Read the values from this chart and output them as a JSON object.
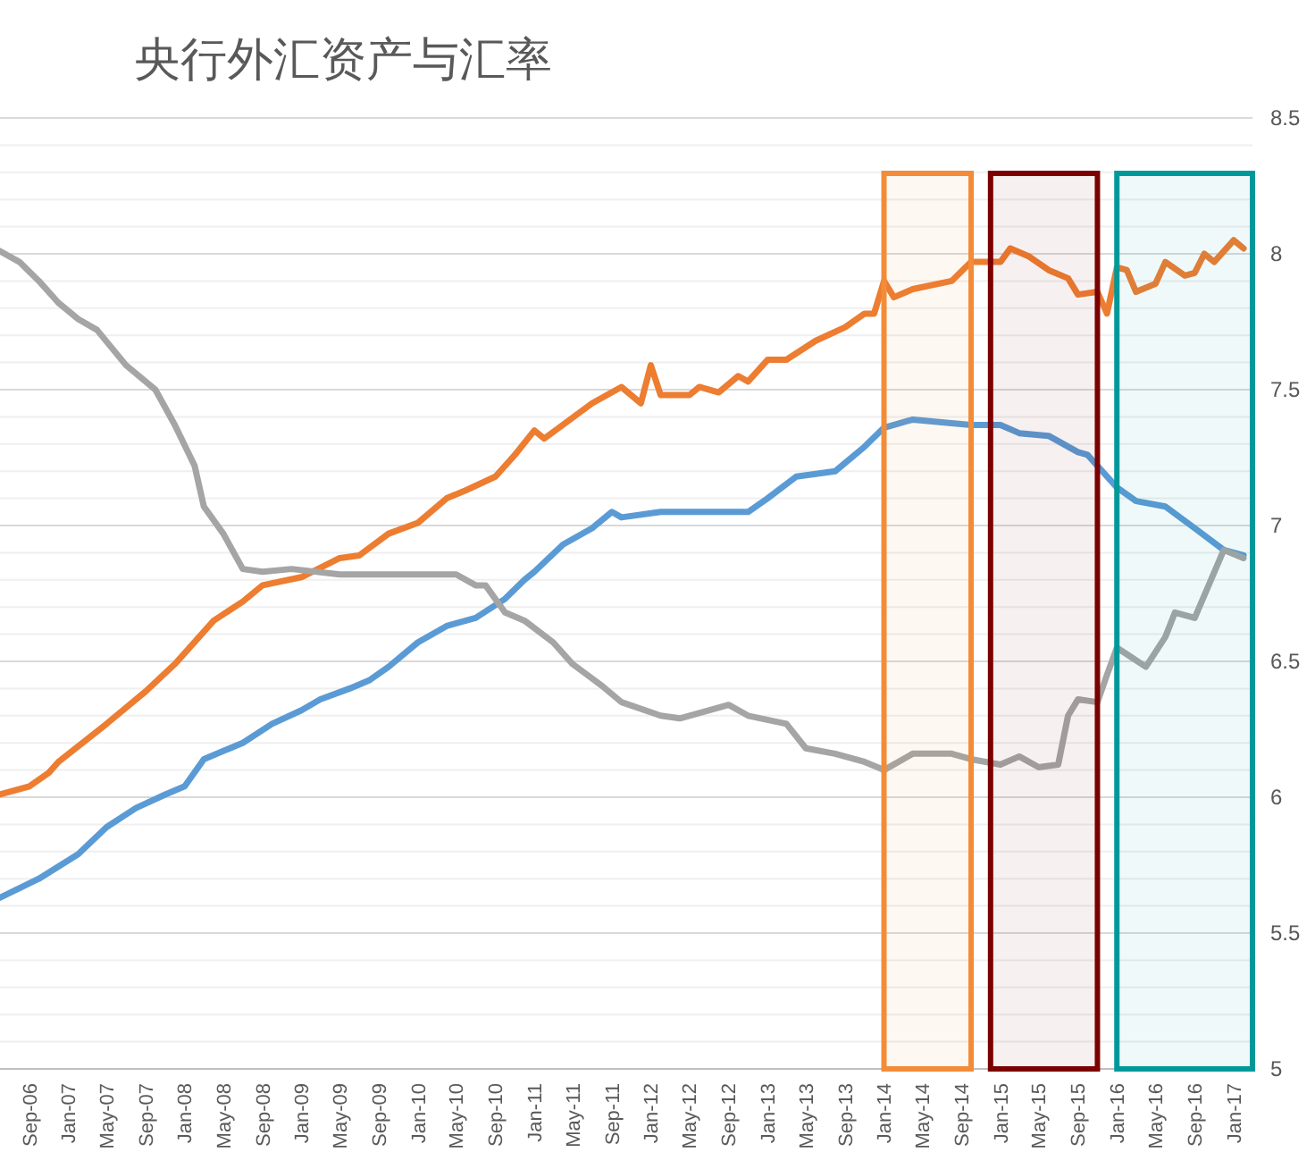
{
  "chart_data": {
    "type": "line",
    "title": "央行外汇资产与汇率",
    "xlim": [
      "2006-06",
      "2017-03"
    ],
    "xticks": [
      {
        "value": "2006-09",
        "label": "Sep-06"
      },
      {
        "value": "2007-01",
        "label": "Jan-07"
      },
      {
        "value": "2007-05",
        "label": "May-07"
      },
      {
        "value": "2007-09",
        "label": "Sep-07"
      },
      {
        "value": "2008-01",
        "label": "Jan-08"
      },
      {
        "value": "2008-05",
        "label": "May-08"
      },
      {
        "value": "2008-09",
        "label": "Sep-08"
      },
      {
        "value": "2009-01",
        "label": "Jan-09"
      },
      {
        "value": "2009-05",
        "label": "May-09"
      },
      {
        "value": "2009-09",
        "label": "Sep-09"
      },
      {
        "value": "2010-01",
        "label": "Jan-10"
      },
      {
        "value": "2010-05",
        "label": "May-10"
      },
      {
        "value": "2010-09",
        "label": "Sep-10"
      },
      {
        "value": "2011-01",
        "label": "Jan-11"
      },
      {
        "value": "2011-05",
        "label": "May-11"
      },
      {
        "value": "2011-09",
        "label": "Sep-11"
      },
      {
        "value": "2012-01",
        "label": "Jan-12"
      },
      {
        "value": "2012-05",
        "label": "May-12"
      },
      {
        "value": "2012-09",
        "label": "Sep-12"
      },
      {
        "value": "2013-01",
        "label": "Jan-13"
      },
      {
        "value": "2013-05",
        "label": "May-13"
      },
      {
        "value": "2013-09",
        "label": "Sep-13"
      },
      {
        "value": "2014-01",
        "label": "Jan-14"
      },
      {
        "value": "2014-05",
        "label": "May-14"
      },
      {
        "value": "2014-09",
        "label": "Sep-14"
      },
      {
        "value": "2015-01",
        "label": "Jan-15"
      },
      {
        "value": "2015-05",
        "label": "May-15"
      },
      {
        "value": "2015-09",
        "label": "Sep-15"
      },
      {
        "value": "2016-01",
        "label": "Jan-16"
      },
      {
        "value": "2016-05",
        "label": "May-16"
      },
      {
        "value": "2016-09",
        "label": "Sep-16"
      },
      {
        "value": "2017-01",
        "label": "Jan-17"
      }
    ],
    "ylim": [
      5,
      8.5
    ],
    "yticks": [
      5,
      {
        "value": 5.1,
        "label": null
      },
      {
        "value": 5.2,
        "label": null
      },
      {
        "value": 5.3,
        "label": null
      },
      {
        "value": 5.4,
        "label": null
      },
      5.5,
      {
        "value": 5.6,
        "label": null
      },
      {
        "value": 5.7,
        "label": null
      },
      {
        "value": 5.8,
        "label": null
      },
      {
        "value": 5.9,
        "label": null
      },
      6,
      {
        "value": 6.1,
        "label": null
      },
      {
        "value": 6.2,
        "label": null
      },
      {
        "value": 6.3,
        "label": null
      },
      {
        "value": 6.4,
        "label": null
      },
      6.5,
      {
        "value": 6.6,
        "label": null
      },
      {
        "value": 6.7,
        "label": null
      },
      {
        "value": 6.8,
        "label": null
      },
      {
        "value": 6.9,
        "label": null
      },
      7,
      {
        "value": 7.1,
        "label": null
      },
      {
        "value": 7.2,
        "label": null
      },
      {
        "value": 7.3,
        "label": null
      },
      {
        "value": 7.4,
        "label": null
      },
      7.5,
      {
        "value": 7.6,
        "label": null
      },
      {
        "value": 7.7,
        "label": null
      },
      {
        "value": 7.8,
        "label": null
      },
      {
        "value": 7.9,
        "label": null
      },
      8,
      {
        "value": 8.1,
        "label": null
      },
      {
        "value": 8.2,
        "label": null
      },
      {
        "value": 8.3,
        "label": null
      },
      {
        "value": 8.4,
        "label": null
      },
      8.5
    ],
    "grid": "y",
    "marker": "none",
    "line_style": "solid",
    "series": [
      {
        "color": "#ed7d31",
        "x": [
          "2006-06",
          "2006-09",
          "2006-11",
          "2006-12",
          "2007-05",
          "2007-09",
          "2007-12",
          "2008-04",
          "2008-07",
          "2008-09",
          "2009-01",
          "2009-05",
          "2009-07",
          "2009-10",
          "2010-01",
          "2010-04",
          "2010-06",
          "2010-09",
          "2010-11",
          "2011-01",
          "2011-02",
          "2011-07",
          "2011-10",
          "2011-12",
          "2012-01",
          "2012-02",
          "2012-05",
          "2012-06",
          "2012-08",
          "2012-10",
          "2012-11",
          "2013-01",
          "2013-03",
          "2013-06",
          "2013-09",
          "2013-11",
          "2013-12",
          "2014-01",
          "2014-02",
          "2014-04",
          "2014-08",
          "2014-10",
          "2014-11",
          "2015-01",
          "2015-02",
          "2015-04",
          "2015-06",
          "2015-08",
          "2015-09",
          "2015-11",
          "2015-12",
          "2016-01",
          "2016-02",
          "2016-03",
          "2016-05",
          "2016-06",
          "2016-08",
          "2016-09",
          "2016-10",
          "2016-11",
          "2017-01",
          "2017-02"
        ],
        "values": [
          6.01,
          6.04,
          6.09,
          6.13,
          6.27,
          6.39,
          6.49,
          6.65,
          6.72,
          6.78,
          6.81,
          6.88,
          6.89,
          6.97,
          7.01,
          7.1,
          7.13,
          7.18,
          7.26,
          7.35,
          7.32,
          7.45,
          7.51,
          7.45,
          7.59,
          7.48,
          7.48,
          7.51,
          7.49,
          7.55,
          7.53,
          7.61,
          7.61,
          7.68,
          7.73,
          7.78,
          7.78,
          7.9,
          7.84,
          7.87,
          7.9,
          7.97,
          7.97,
          7.97,
          8.02,
          7.99,
          7.94,
          7.91,
          7.85,
          7.86,
          7.78,
          7.95,
          7.94,
          7.86,
          7.89,
          7.97,
          7.92,
          7.93,
          8.0,
          7.97,
          8.05,
          8.02
        ]
      },
      {
        "color": "#5b9bd5",
        "x": [
          "2006-06",
          "2006-10",
          "2007-02",
          "2007-05",
          "2007-08",
          "2007-11",
          "2008-01",
          "2008-03",
          "2008-05",
          "2008-07",
          "2008-10",
          "2009-01",
          "2009-03",
          "2009-06",
          "2009-08",
          "2009-10",
          "2010-01",
          "2010-04",
          "2010-07",
          "2010-10",
          "2010-12",
          "2011-01",
          "2011-04",
          "2011-07",
          "2011-09",
          "2011-10",
          "2012-02",
          "2012-04",
          "2012-11",
          "2013-01",
          "2013-04",
          "2013-08",
          "2013-11",
          "2014-01",
          "2014-04",
          "2014-07",
          "2014-10",
          "2015-01",
          "2015-03",
          "2015-06",
          "2015-09",
          "2015-10",
          "2016-01",
          "2016-03",
          "2016-06",
          "2016-09",
          "2016-12",
          "2017-02"
        ],
        "values": [
          5.63,
          5.7,
          5.79,
          5.89,
          5.96,
          6.01,
          6.04,
          6.14,
          6.17,
          6.2,
          6.27,
          6.32,
          6.36,
          6.4,
          6.43,
          6.48,
          6.57,
          6.63,
          6.66,
          6.73,
          6.8,
          6.83,
          6.93,
          6.99,
          7.05,
          7.03,
          7.05,
          7.05,
          7.05,
          7.1,
          7.18,
          7.2,
          7.29,
          7.36,
          7.39,
          7.38,
          7.37,
          7.37,
          7.34,
          7.33,
          7.27,
          7.26,
          7.14,
          7.09,
          7.07,
          6.99,
          6.91,
          6.89
        ]
      },
      {
        "color": "#a5a5a5",
        "x": [
          "2006-06",
          "2006-08",
          "2006-10",
          "2006-12",
          "2007-02",
          "2007-04",
          "2007-07",
          "2007-10",
          "2007-12",
          "2008-02",
          "2008-03",
          "2008-05",
          "2008-07",
          "2008-09",
          "2008-12",
          "2009-05",
          "2009-09",
          "2010-05",
          "2010-07",
          "2010-08",
          "2010-10",
          "2010-12",
          "2011-03",
          "2011-05",
          "2011-08",
          "2011-10",
          "2012-02",
          "2012-04",
          "2012-09",
          "2012-11",
          "2013-03",
          "2013-05",
          "2013-08",
          "2013-11",
          "2014-01",
          "2014-04",
          "2014-08",
          "2014-10",
          "2015-01",
          "2015-03",
          "2015-05",
          "2015-07",
          "2015-08",
          "2015-09",
          "2015-11",
          "2015-12",
          "2016-01",
          "2016-04",
          "2016-06",
          "2016-07",
          "2016-09",
          "2016-12",
          "2017-02"
        ],
        "values": [
          8.01,
          7.97,
          7.9,
          7.82,
          7.76,
          7.72,
          7.59,
          7.5,
          7.37,
          7.22,
          7.07,
          6.97,
          6.84,
          6.83,
          6.84,
          6.82,
          6.82,
          6.82,
          6.78,
          6.78,
          6.68,
          6.65,
          6.57,
          6.49,
          6.41,
          6.35,
          6.3,
          6.29,
          6.34,
          6.3,
          6.27,
          6.18,
          6.16,
          6.13,
          6.1,
          6.16,
          6.16,
          6.14,
          6.12,
          6.15,
          6.11,
          6.12,
          6.3,
          6.36,
          6.35,
          6.45,
          6.55,
          6.48,
          6.59,
          6.68,
          6.66,
          6.91,
          6.88
        ]
      }
    ],
    "bands": [
      {
        "axis": "x",
        "from": "2014-01",
        "to": "2014-10",
        "color": "#f28c38"
      },
      {
        "axis": "x",
        "from": "2014-12",
        "to": "2015-11",
        "color": "#7b0000"
      },
      {
        "axis": "x",
        "from": "2016-01",
        "to": "2017-03",
        "color": "#009999"
      }
    ]
  }
}
